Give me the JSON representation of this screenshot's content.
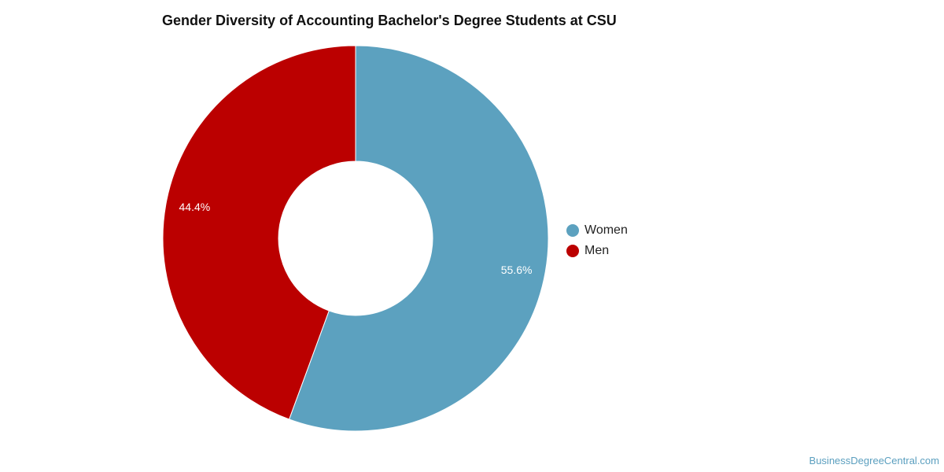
{
  "chart_data": {
    "type": "pie",
    "title": "Gender Diversity of Accounting Bachelor's Degree Students at CSU",
    "donut": true,
    "categories": [
      "Women",
      "Men"
    ],
    "values": [
      55.6,
      44.4
    ],
    "data_labels": [
      "55.6%",
      "44.4%"
    ],
    "colors": [
      "#5ca1bf",
      "#bb0000"
    ],
    "legend_position": "right"
  },
  "legend": {
    "items": [
      {
        "label": "Women",
        "color": "#5ca1bf"
      },
      {
        "label": "Men",
        "color": "#bb0000"
      }
    ]
  },
  "credit": "BusinessDegreeCentral.com"
}
